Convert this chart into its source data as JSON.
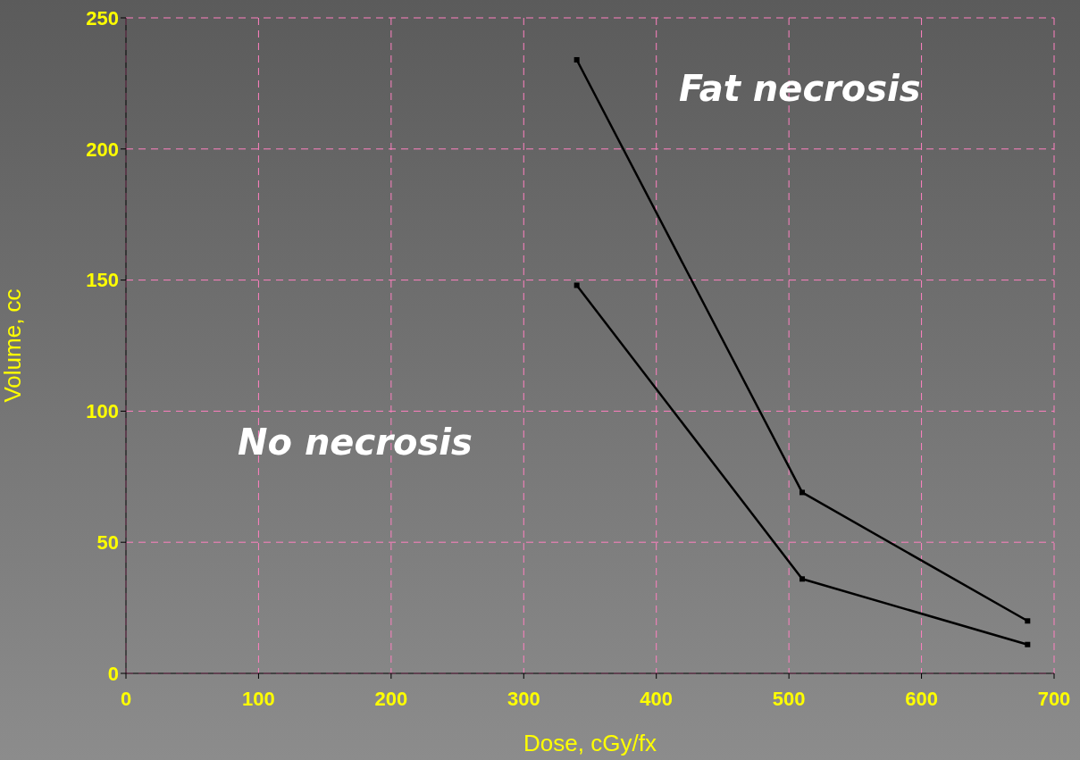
{
  "chart_data": {
    "type": "line",
    "xlabel": "Dose, cGy/fx",
    "ylabel": "Volume, cc",
    "x": [
      340,
      510,
      680
    ],
    "series": [
      {
        "color": "#000000",
        "values": [
          234,
          69,
          20
        ]
      },
      {
        "color": "#000000",
        "values": [
          148,
          36,
          11
        ]
      }
    ],
    "xlim": [
      0,
      700
    ],
    "xticks": [
      0,
      100,
      200,
      300,
      400,
      500,
      600,
      700
    ],
    "ylim": [
      0,
      250
    ],
    "yticks": [
      0,
      50,
      100,
      150,
      200,
      250
    ],
    "grid": true,
    "marker": "square",
    "line_style": "solid",
    "annotations": [
      "Fat necrosis",
      "No necrosis"
    ]
  }
}
